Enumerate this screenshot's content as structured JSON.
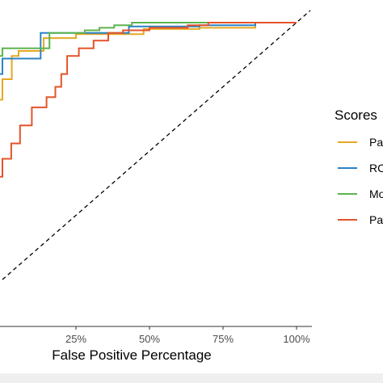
{
  "chart_data": {
    "type": "line",
    "title": "",
    "xlabel": "False Positive Percentage",
    "ylabel": "",
    "xlim": [
      0,
      1
    ],
    "ylim": [
      0,
      1
    ],
    "x_ticks": [
      {
        "value": 0.25,
        "label": "25%"
      },
      {
        "value": 0.5,
        "label": "50%"
      },
      {
        "value": 0.75,
        "label": "75%"
      },
      {
        "value": 1.0,
        "label": "100%"
      }
    ],
    "grid": false,
    "legend": {
      "title": "Scores",
      "placement": "right",
      "entries": [
        "Pa",
        "RC",
        "Mo",
        "Pa"
      ]
    },
    "reference_line": {
      "type": "diagonal",
      "style": "dashed",
      "color": "#000000"
    },
    "series": [
      {
        "color": "#E5A823",
        "x": [
          -0.05,
          0.0,
          0.0,
          0.032,
          0.032,
          0.055,
          0.055,
          0.14,
          0.14,
          0.25,
          0.25,
          0.48,
          0.48,
          0.67,
          0.67,
          0.86,
          0.86,
          1.0,
          1.0
        ],
        "y": [
          0.7,
          0.7,
          0.78,
          0.78,
          0.87,
          0.87,
          0.89,
          0.89,
          0.94,
          0.94,
          0.955,
          0.955,
          0.975,
          0.975,
          0.98,
          0.98,
          1.0,
          1.0,
          1.0
        ]
      },
      {
        "color": "#2A83C6",
        "x": [
          -0.05,
          0.0,
          0.0,
          0.13,
          0.13,
          0.43,
          0.43,
          0.67,
          0.67,
          0.86,
          0.86,
          1.0,
          1.0
        ],
        "y": [
          0.8,
          0.8,
          0.86,
          0.86,
          0.96,
          0.96,
          0.985,
          0.985,
          0.99,
          0.99,
          1.0,
          1.0,
          1.0
        ]
      },
      {
        "color": "#5DB44F",
        "x": [
          -0.05,
          0.0,
          0.0,
          0.16,
          0.16,
          0.28,
          0.28,
          0.33,
          0.33,
          0.38,
          0.38,
          0.44,
          0.44,
          1.0,
          1.0
        ],
        "y": [
          0.87,
          0.87,
          0.9,
          0.9,
          0.96,
          0.96,
          0.97,
          0.97,
          0.98,
          0.98,
          0.99,
          0.99,
          1.0,
          1.0,
          1.0
        ]
      },
      {
        "color": "#E4532A",
        "x": [
          -0.05,
          0.0,
          0.0,
          0.03,
          0.03,
          0.06,
          0.06,
          0.1,
          0.1,
          0.15,
          0.15,
          0.18,
          0.18,
          0.2,
          0.2,
          0.22,
          0.22,
          0.26,
          0.26,
          0.31,
          0.31,
          0.36,
          0.36,
          0.41,
          0.41,
          0.5,
          0.5,
          0.63,
          0.63,
          0.7,
          0.7,
          0.82,
          0.82,
          1.0,
          1.0
        ],
        "y": [
          0.4,
          0.4,
          0.47,
          0.47,
          0.53,
          0.53,
          0.6,
          0.6,
          0.67,
          0.67,
          0.71,
          0.71,
          0.75,
          0.75,
          0.8,
          0.8,
          0.87,
          0.87,
          0.9,
          0.9,
          0.93,
          0.93,
          0.96,
          0.96,
          0.97,
          0.97,
          0.98,
          0.98,
          0.99,
          0.99,
          1.0,
          1.0,
          1.0,
          1.0,
          1.0
        ]
      }
    ]
  }
}
